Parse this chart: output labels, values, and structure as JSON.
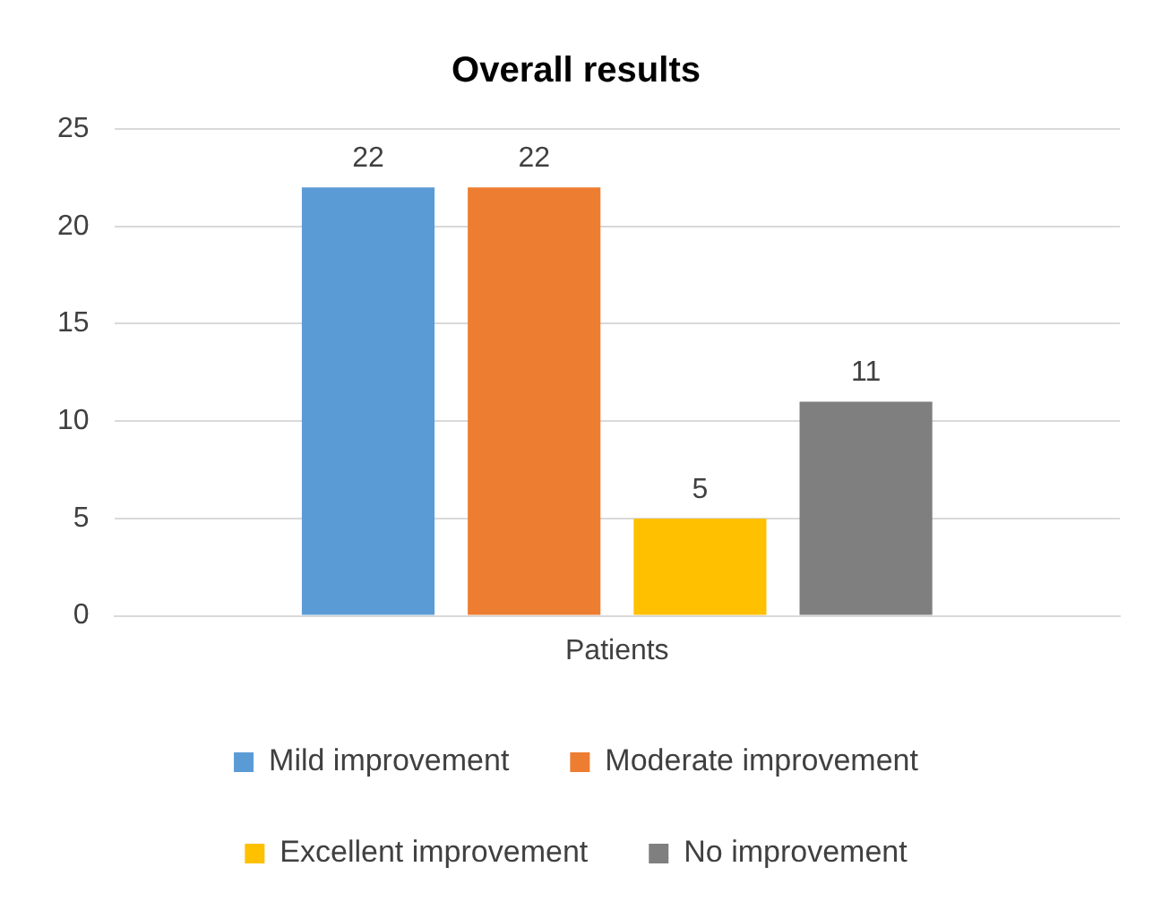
{
  "chart_data": {
    "type": "bar",
    "title": "Overall results",
    "categories": [
      "Patients"
    ],
    "series": [
      {
        "name": "Mild improvement",
        "color": "#5b9bd5",
        "values": [
          22
        ]
      },
      {
        "name": "Moderate improvement",
        "color": "#ed7d31",
        "values": [
          22
        ]
      },
      {
        "name": "Excellent improvement",
        "color": "#ffc000",
        "values": [
          5
        ]
      },
      {
        "name": "No improvement",
        "color": "#7f7f7f",
        "values": [
          11
        ]
      }
    ],
    "ylim": [
      0,
      25
    ],
    "yticks": [
      0,
      5,
      10,
      15,
      20,
      25
    ],
    "grid": "y",
    "legend": "bottom",
    "data_labels": true
  }
}
